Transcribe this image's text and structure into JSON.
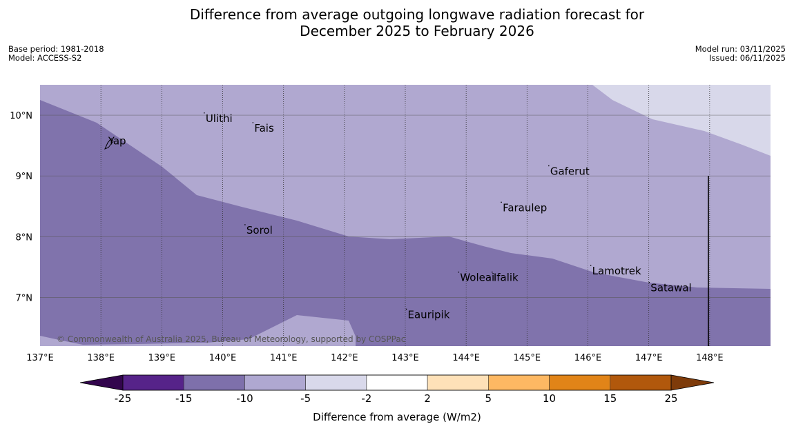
{
  "title": {
    "line1": "Difference from average outgoing longwave radiation forecast for",
    "line2": "December 2025 to February 2026"
  },
  "meta": {
    "base_period": "Base period: 1981-2018",
    "model": "Model: ACCESS-S2",
    "model_run": "Model run: 03/11/2025",
    "issued": "Issued: 06/11/2025"
  },
  "map": {
    "lon_min": 137.0,
    "lon_max": 149.0,
    "lat_min": 6.2,
    "lat_max": 10.5,
    "lon_ticks": [
      {
        "value": 137,
        "label": "137°E"
      },
      {
        "value": 138,
        "label": "138°E"
      },
      {
        "value": 139,
        "label": "139°E"
      },
      {
        "value": 140,
        "label": "140°E"
      },
      {
        "value": 141,
        "label": "141°E"
      },
      {
        "value": 142,
        "label": "142°E"
      },
      {
        "value": 143,
        "label": "143°E"
      },
      {
        "value": 144,
        "label": "144°E"
      },
      {
        "value": 145,
        "label": "145°E"
      },
      {
        "value": 146,
        "label": "146°E"
      },
      {
        "value": 147,
        "label": "147°E"
      },
      {
        "value": 148,
        "label": "148°E"
      }
    ],
    "lat_ticks": [
      {
        "value": 10,
        "label": "10°N"
      },
      {
        "value": 9,
        "label": "9°N"
      },
      {
        "value": 8,
        "label": "8°N"
      },
      {
        "value": 7,
        "label": "7°N"
      }
    ],
    "places": [
      {
        "name": "Ulithi",
        "lon": 139.72,
        "lat": 9.89
      },
      {
        "name": "Fais",
        "lon": 140.52,
        "lat": 9.73
      },
      {
        "name": "Yap",
        "lon": 138.12,
        "lat": 9.52
      },
      {
        "name": "Gaferut",
        "lon": 145.38,
        "lat": 9.02
      },
      {
        "name": "Faraulep",
        "lon": 144.6,
        "lat": 8.42
      },
      {
        "name": "Sorol",
        "lon": 140.39,
        "lat": 8.05
      },
      {
        "name": "Lamotrek",
        "lon": 146.07,
        "lat": 7.38
      },
      {
        "name": "Woleai",
        "lon": 143.9,
        "lat": 7.27
      },
      {
        "name": "Ifalik",
        "lon": 144.45,
        "lat": 7.27
      },
      {
        "name": "Satawal",
        "lon": 147.03,
        "lat": 7.1
      },
      {
        "name": "Eauripik",
        "lon": 143.04,
        "lat": 6.66
      }
    ],
    "copyright": "© Commonwealth of Australia 2025, Bureau of Meteorology, supported by COSPPac",
    "fill_colors": {
      "bin_-15_-10": "#8073ac",
      "bin_-10_-5": "#b0a8d0",
      "bin_-5_-2": "#d8d8ea"
    }
  },
  "colorbar": {
    "title": "Difference from average (W/m2)",
    "ticks": [
      "-25",
      "-15",
      "-10",
      "-5",
      "-2",
      "2",
      "5",
      "10",
      "15",
      "25"
    ],
    "bins": [
      {
        "color": "#562389"
      },
      {
        "color": "#7e70ab"
      },
      {
        "color": "#afa8d1"
      },
      {
        "color": "#d9d9eb"
      },
      {
        "color": "#ffffff"
      },
      {
        "color": "#fee1b8"
      },
      {
        "color": "#fdb863"
      },
      {
        "color": "#e18418"
      },
      {
        "color": "#b1580c"
      }
    ],
    "under_color": "#32054d",
    "over_color": "#7e3b0a"
  }
}
